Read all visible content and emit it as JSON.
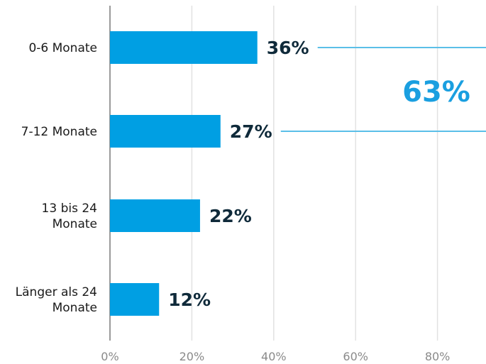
{
  "chart_data": {
    "type": "bar",
    "orientation": "horizontal",
    "categories": [
      [
        "0-6 Monate"
      ],
      [
        "7-12 Monate"
      ],
      [
        "13 bis 24",
        "Monate"
      ],
      [
        "Länger als 24",
        "Monate"
      ]
    ],
    "values": [
      36,
      27,
      22,
      12
    ],
    "value_labels": [
      "36%",
      "27%",
      "22%",
      "12%"
    ],
    "x_ticks": [
      "0%",
      "20%",
      "40%",
      "60%",
      "80%"
    ],
    "xlim": [
      0,
      92
    ],
    "grid": true,
    "annotation": {
      "text": "63%",
      "spans_categories": [
        0,
        1
      ]
    },
    "colors": {
      "bar": "#009fe3",
      "value_text": "#0f2a3a",
      "annotation": "#1a9fe0",
      "connector": "#5bbfe8",
      "grid": "#e2e2e2",
      "axis": "#9a9a9a"
    }
  }
}
